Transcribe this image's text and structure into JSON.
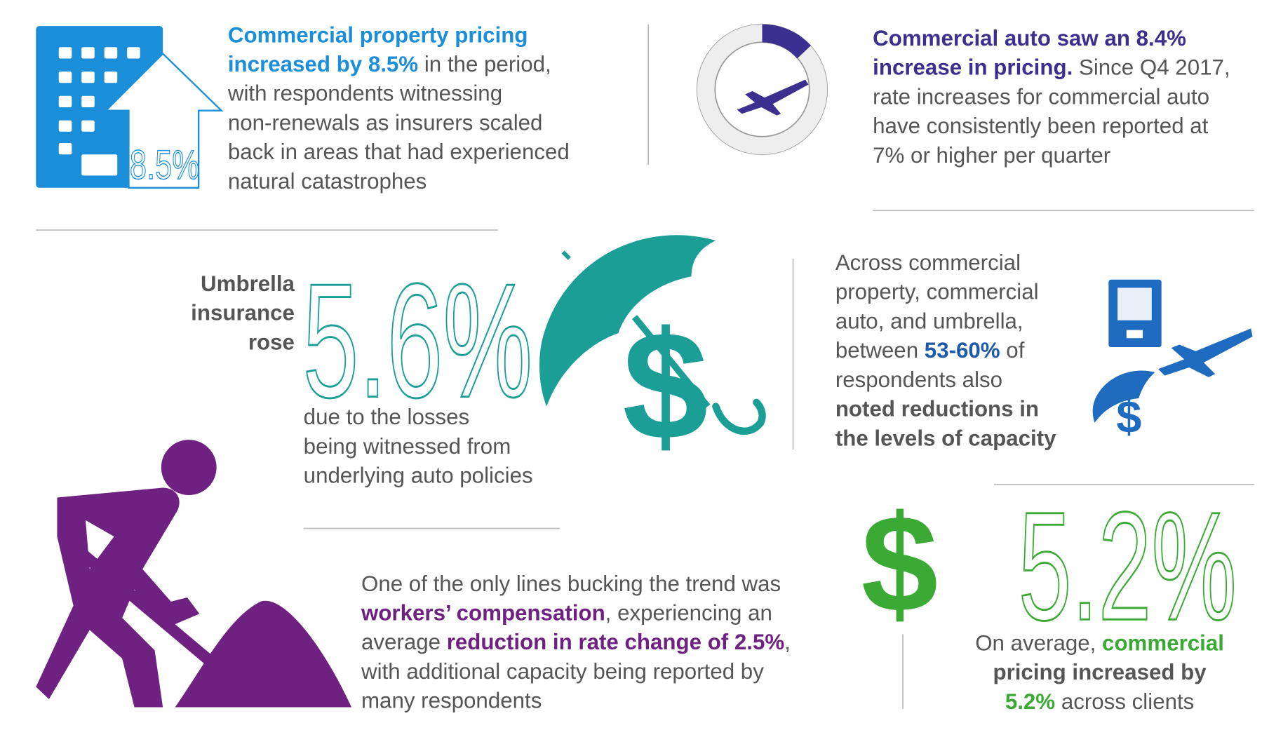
{
  "property": {
    "icon_label": "8.5%",
    "lines": [
      [
        "Commercial property pricing"
      ],
      [
        "increased by 8.5%",
        " in the period,"
      ],
      [
        "with respondents witnessing"
      ],
      [
        "non-renewals as insurers scaled"
      ],
      [
        "back in areas that had experienced"
      ],
      [
        "natural catastrophes"
      ]
    ]
  },
  "auto": {
    "lines": [
      [
        "Commercial auto saw an 8.4%"
      ],
      [
        "increase in pricing.",
        " Since Q4 2017,"
      ],
      [
        "rate increases for commercial auto"
      ],
      [
        "have consistently been reported at"
      ],
      [
        "7% or higher per quarter"
      ]
    ]
  },
  "umbrella": {
    "label": [
      "Umbrella",
      "insurance",
      "rose"
    ],
    "figure": "5.6%",
    "lines": [
      "due to the losses",
      "being witnessed from",
      "underlying auto policies"
    ]
  },
  "capacity": {
    "lines": [
      [
        "Across commercial"
      ],
      [
        "property, commercial"
      ],
      [
        "auto, and umbrella,"
      ],
      [
        "between ",
        "53-60%",
        " of"
      ],
      [
        "respondents also"
      ],
      [
        "noted reductions in"
      ],
      [
        "the levels of capacity"
      ]
    ]
  },
  "workers": {
    "lines": [
      [
        "One of the only lines bucking the trend was"
      ],
      [
        "workers’ compensation",
        ", experiencing an"
      ],
      [
        "average ",
        "reduction in rate change of 2.5%",
        ","
      ],
      [
        "with additional capacity being reported by"
      ],
      [
        "many respondents"
      ]
    ]
  },
  "average": {
    "figure": "5.2%",
    "lines": [
      [
        "On average, ",
        "commercial"
      ],
      [
        "pricing increased by"
      ],
      [
        "5.2%",
        " across clients"
      ]
    ]
  }
}
